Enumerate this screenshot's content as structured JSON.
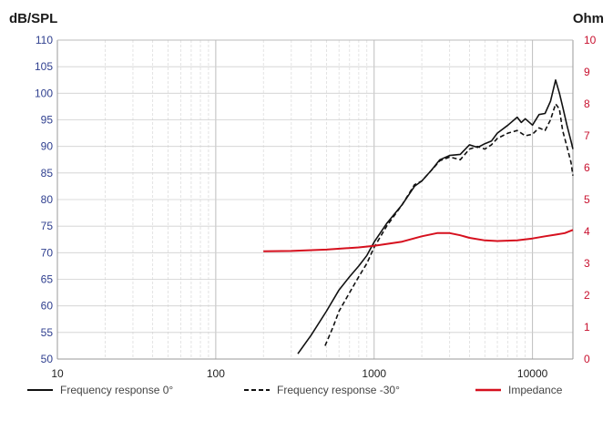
{
  "chart_data": {
    "type": "line",
    "title": "",
    "xlabel": "",
    "ylabel_left": "dB/SPL",
    "ylabel_right": "Ohm",
    "x_scale": "log",
    "xlim": [
      10,
      18000
    ],
    "ylim_left": [
      50,
      110
    ],
    "ylim_right": [
      0,
      10
    ],
    "x_ticks": [
      "10",
      "100",
      "1000",
      "10000"
    ],
    "y_ticks_left": [
      "50",
      "55",
      "60",
      "65",
      "70",
      "75",
      "80",
      "85",
      "90",
      "95",
      "100",
      "105",
      "110"
    ],
    "y_ticks_right": [
      "0",
      "1",
      "2",
      "3",
      "4",
      "5",
      "6",
      "7",
      "8",
      "9",
      "10"
    ],
    "grid": true,
    "legend_position": "bottom",
    "colors": {
      "fr0": "#111111",
      "fr30": "#111111",
      "impedance": "#d6101e",
      "left_ticks": "#2f3f8f",
      "right_ticks": "#c8102e"
    },
    "series": [
      {
        "name": "Frequency response 0°",
        "axis": "left",
        "style": "solid",
        "points": [
          [
            330,
            51
          ],
          [
            400,
            54.5
          ],
          [
            500,
            59
          ],
          [
            600,
            63
          ],
          [
            700,
            65.5
          ],
          [
            800,
            67.5
          ],
          [
            900,
            69.5
          ],
          [
            1000,
            72
          ],
          [
            1200,
            75.5
          ],
          [
            1500,
            79
          ],
          [
            1800,
            82.5
          ],
          [
            2000,
            83.5
          ],
          [
            2300,
            85.5
          ],
          [
            2600,
            87.5
          ],
          [
            3000,
            88.3
          ],
          [
            3500,
            88.5
          ],
          [
            4000,
            90.3
          ],
          [
            4500,
            89.8
          ],
          [
            5000,
            90.5
          ],
          [
            5500,
            91
          ],
          [
            6000,
            92.5
          ],
          [
            7000,
            94
          ],
          [
            8000,
            95.5
          ],
          [
            8500,
            94.5
          ],
          [
            9000,
            95.2
          ],
          [
            10000,
            94
          ],
          [
            11000,
            96
          ],
          [
            12000,
            96.2
          ],
          [
            13000,
            98.5
          ],
          [
            14000,
            102.5
          ],
          [
            14800,
            100
          ],
          [
            15500,
            97.5
          ],
          [
            16500,
            94
          ],
          [
            17500,
            91
          ],
          [
            18000,
            89.5
          ]
        ]
      },
      {
        "name": "Frequency response -30°",
        "axis": "left",
        "style": "dashed",
        "points": [
          [
            490,
            52.5
          ],
          [
            550,
            56
          ],
          [
            600,
            59
          ],
          [
            700,
            62.5
          ],
          [
            800,
            65.5
          ],
          [
            900,
            68
          ],
          [
            1000,
            71
          ],
          [
            1200,
            75
          ],
          [
            1500,
            79
          ],
          [
            1800,
            82.8
          ],
          [
            2000,
            83.5
          ],
          [
            2300,
            85.5
          ],
          [
            2600,
            87.3
          ],
          [
            3000,
            88
          ],
          [
            3500,
            87.5
          ],
          [
            4000,
            89.5
          ],
          [
            4500,
            90
          ],
          [
            5000,
            89.5
          ],
          [
            5500,
            90.3
          ],
          [
            6000,
            91.5
          ],
          [
            7000,
            92.5
          ],
          [
            8000,
            93
          ],
          [
            9000,
            92
          ],
          [
            10000,
            92.3
          ],
          [
            11000,
            93.5
          ],
          [
            12000,
            93
          ],
          [
            13000,
            95
          ],
          [
            14000,
            98
          ],
          [
            14800,
            97
          ],
          [
            15500,
            93
          ],
          [
            16500,
            90
          ],
          [
            17500,
            87
          ],
          [
            18000,
            84.5
          ]
        ]
      },
      {
        "name": "Impedance",
        "axis": "right",
        "style": "solid",
        "points": [
          [
            200,
            3.38
          ],
          [
            300,
            3.39
          ],
          [
            500,
            3.43
          ],
          [
            800,
            3.5
          ],
          [
            1000,
            3.55
          ],
          [
            1500,
            3.68
          ],
          [
            2000,
            3.85
          ],
          [
            2500,
            3.95
          ],
          [
            3000,
            3.95
          ],
          [
            3500,
            3.88
          ],
          [
            4000,
            3.8
          ],
          [
            5000,
            3.72
          ],
          [
            6000,
            3.7
          ],
          [
            8000,
            3.72
          ],
          [
            10000,
            3.78
          ],
          [
            12000,
            3.85
          ],
          [
            14000,
            3.9
          ],
          [
            16000,
            3.95
          ],
          [
            18000,
            4.05
          ]
        ]
      }
    ]
  }
}
